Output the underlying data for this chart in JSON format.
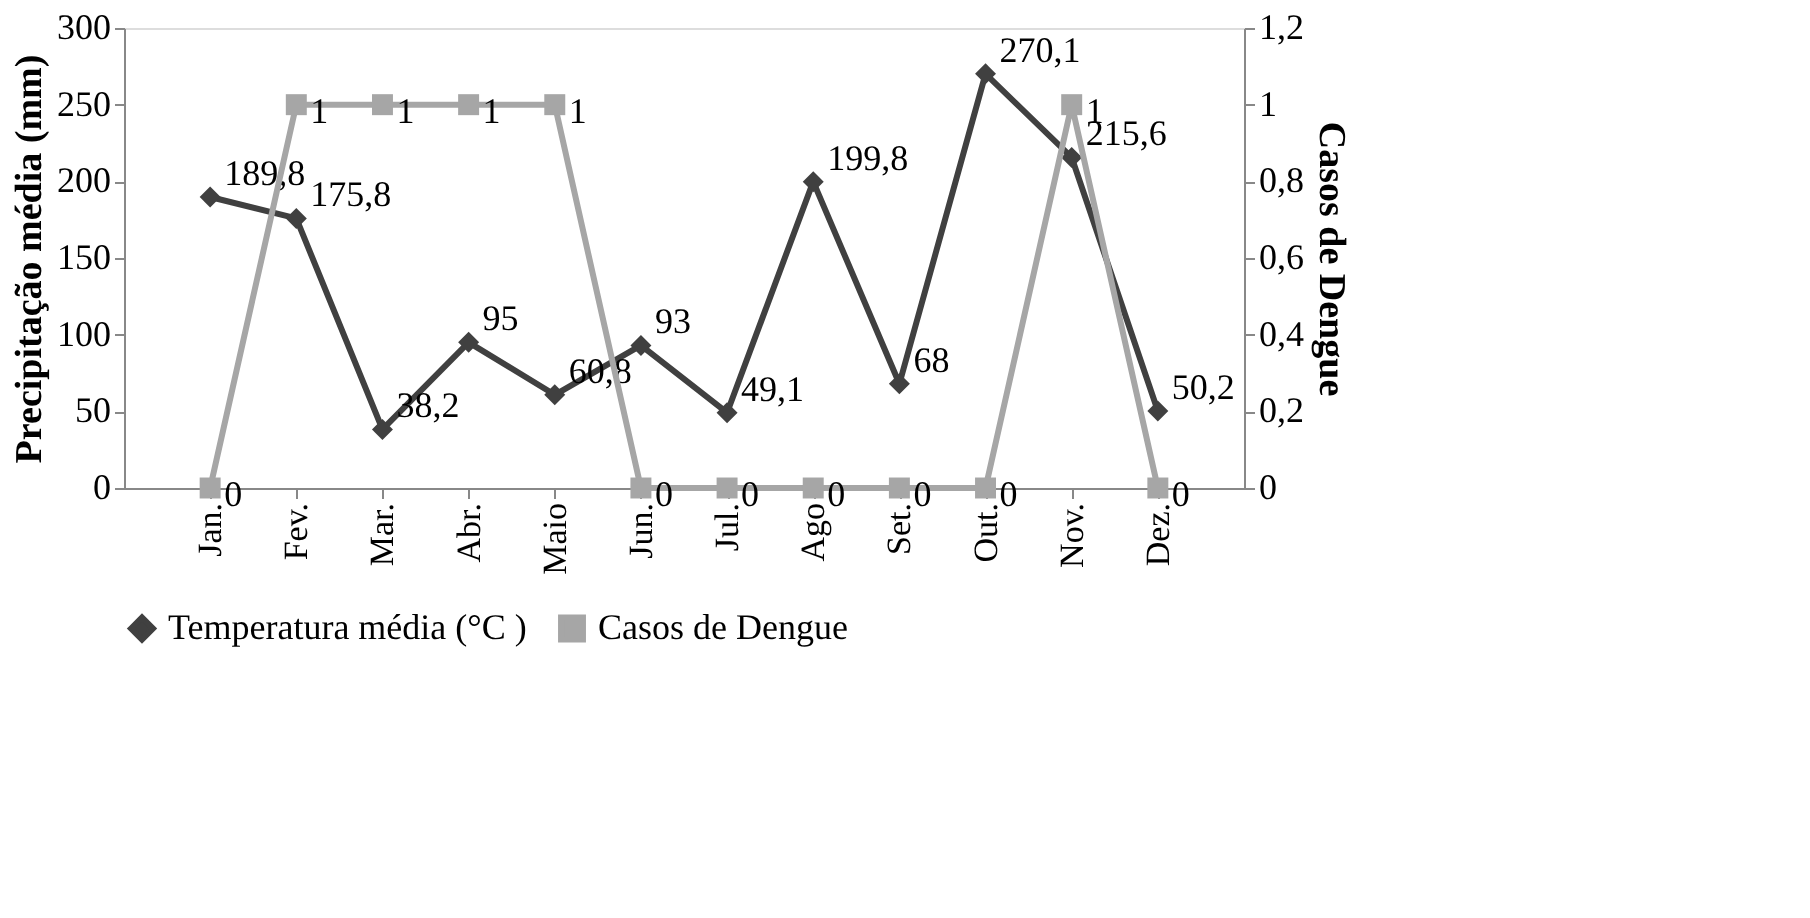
{
  "chart_data": {
    "type": "line",
    "categories": [
      "Jan.",
      "Fev.",
      "Mar.",
      "Abr.",
      "Maio",
      "Jun.",
      "Jul.",
      "Ago",
      "Set.",
      "Out.",
      "Nov.",
      "Dez."
    ],
    "ylabel": "Precipitação média (mm)",
    "y2label": "Casos de Dengue",
    "ylim": [
      0,
      300
    ],
    "yticks": [
      0,
      50,
      100,
      150,
      200,
      250,
      300
    ],
    "y2lim": [
      0,
      1.2
    ],
    "y2ticks": [
      0,
      {
        "value": 0.2,
        "label": "0,2"
      },
      {
        "value": 0.4,
        "label": "0,4"
      },
      {
        "value": 0.6,
        "label": "0,6"
      },
      {
        "value": 0.8,
        "label": "0,8"
      },
      1,
      {
        "value": 1.2,
        "label": "1,2"
      }
    ],
    "series": [
      {
        "name": "Temperatura média (°C )",
        "color": "#404040",
        "marker": "diamond",
        "values": [
          189.8,
          175.8,
          38.2,
          95,
          60.8,
          93,
          49.1,
          199.8,
          68,
          270.1,
          215.6,
          50.2
        ],
        "value_labels": [
          "189,8",
          "175,8",
          "38,2",
          "95",
          "60,8",
          "93",
          "49,1",
          "199,8",
          "68",
          "270,1",
          "215,6",
          "50,2"
        ]
      },
      {
        "name": "Casos de Dengue",
        "color": "#a6a6a6",
        "marker": "square",
        "axis": "y2",
        "values": [
          0,
          1,
          1,
          1,
          1,
          0,
          0,
          0,
          0,
          0,
          1,
          0
        ],
        "data_labels": true
      }
    ],
    "legend": "bottom",
    "grid": false,
    "line_style": "solid"
  }
}
